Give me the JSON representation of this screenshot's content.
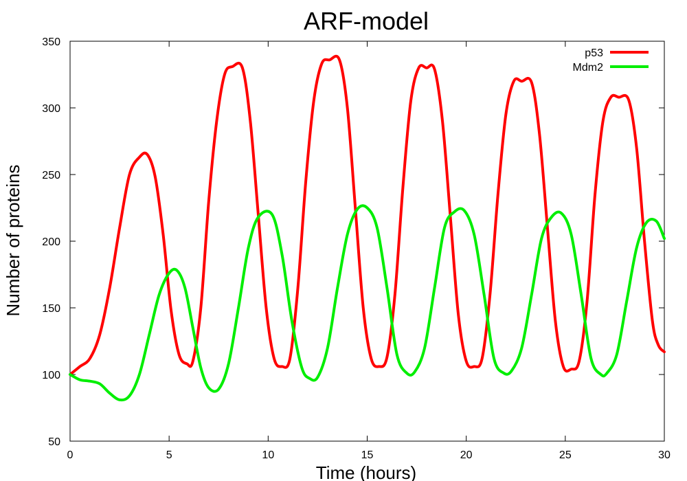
{
  "chart_data": {
    "type": "line",
    "title": "ARF-model",
    "xlabel": "Time (hours)",
    "ylabel": "Number of proteins",
    "xlim": [
      0,
      30
    ],
    "ylim": [
      50,
      350
    ],
    "xticks": [
      0,
      5,
      10,
      15,
      20,
      25,
      30
    ],
    "yticks": [
      50,
      100,
      150,
      200,
      250,
      300,
      350
    ],
    "grid": false,
    "legend_position": "top-right",
    "series": [
      {
        "name": "p53",
        "color": "#ff0000",
        "x": [
          0,
          0.5,
          1.0,
          1.5,
          2.0,
          2.5,
          3.0,
          3.5,
          3.9,
          4.3,
          4.7,
          5.1,
          5.5,
          5.9,
          6.2,
          6.6,
          7.0,
          7.4,
          7.8,
          8.2,
          8.7,
          9.1,
          9.5,
          9.9,
          10.3,
          10.7,
          11.1,
          11.5,
          11.9,
          12.3,
          12.7,
          13.1,
          13.6,
          14.0,
          14.4,
          14.8,
          15.2,
          15.6,
          16.0,
          16.4,
          16.8,
          17.2,
          17.6,
          18.0,
          18.4,
          18.8,
          19.2,
          19.6,
          20.0,
          20.4,
          20.8,
          21.2,
          21.6,
          22.0,
          22.4,
          22.8,
          23.3,
          23.7,
          24.1,
          24.5,
          24.9,
          25.3,
          25.7,
          26.1,
          26.5,
          26.9,
          27.3,
          27.7,
          28.2,
          28.6,
          29.0,
          29.4,
          29.7,
          30.0
        ],
        "y": [
          100,
          106,
          112,
          130,
          165,
          210,
          250,
          263,
          265,
          248,
          205,
          148,
          115,
          108,
          110,
          150,
          230,
          290,
          325,
          331,
          330,
          290,
          220,
          150,
          112,
          106,
          112,
          165,
          245,
          305,
          333,
          336,
          336,
          300,
          225,
          150,
          112,
          106,
          113,
          160,
          240,
          305,
          330,
          330,
          329,
          290,
          218,
          145,
          110,
          106,
          112,
          160,
          235,
          295,
          320,
          320,
          319,
          280,
          210,
          140,
          106,
          104,
          110,
          155,
          235,
          290,
          308,
          308,
          306,
          270,
          200,
          140,
          122,
          117
        ]
      },
      {
        "name": "Mdm2",
        "color": "#00ee00",
        "x": [
          0,
          0.5,
          1.0,
          1.5,
          2.0,
          2.5,
          3.0,
          3.5,
          4.0,
          4.5,
          5.0,
          5.4,
          5.8,
          6.2,
          6.6,
          7.0,
          7.5,
          8.0,
          8.5,
          9.0,
          9.5,
          10.2,
          10.7,
          11.2,
          11.7,
          12.1,
          12.5,
          13.0,
          13.5,
          14.0,
          14.5,
          15.0,
          15.5,
          16.0,
          16.5,
          17.0,
          17.4,
          17.9,
          18.4,
          18.9,
          19.4,
          19.9,
          20.4,
          20.9,
          21.4,
          21.9,
          22.3,
          22.8,
          23.3,
          23.8,
          24.3,
          24.8,
          25.3,
          25.8,
          26.3,
          26.8,
          27.1,
          27.6,
          28.1,
          28.6,
          29.1,
          29.6,
          30.0
        ],
        "y": [
          100,
          96,
          95,
          93,
          86,
          81,
          84,
          100,
          130,
          160,
          176,
          178,
          165,
          135,
          105,
          90,
          89,
          108,
          150,
          195,
          218,
          220,
          190,
          140,
          105,
          97,
          98,
          120,
          165,
          205,
          224,
          225,
          210,
          165,
          115,
          101,
          102,
          120,
          165,
          210,
          222,
          223,
          205,
          160,
          112,
          101,
          103,
          120,
          160,
          202,
          218,
          221,
          205,
          160,
          112,
          100,
          101,
          115,
          155,
          195,
          214,
          215,
          202
        ]
      }
    ]
  }
}
